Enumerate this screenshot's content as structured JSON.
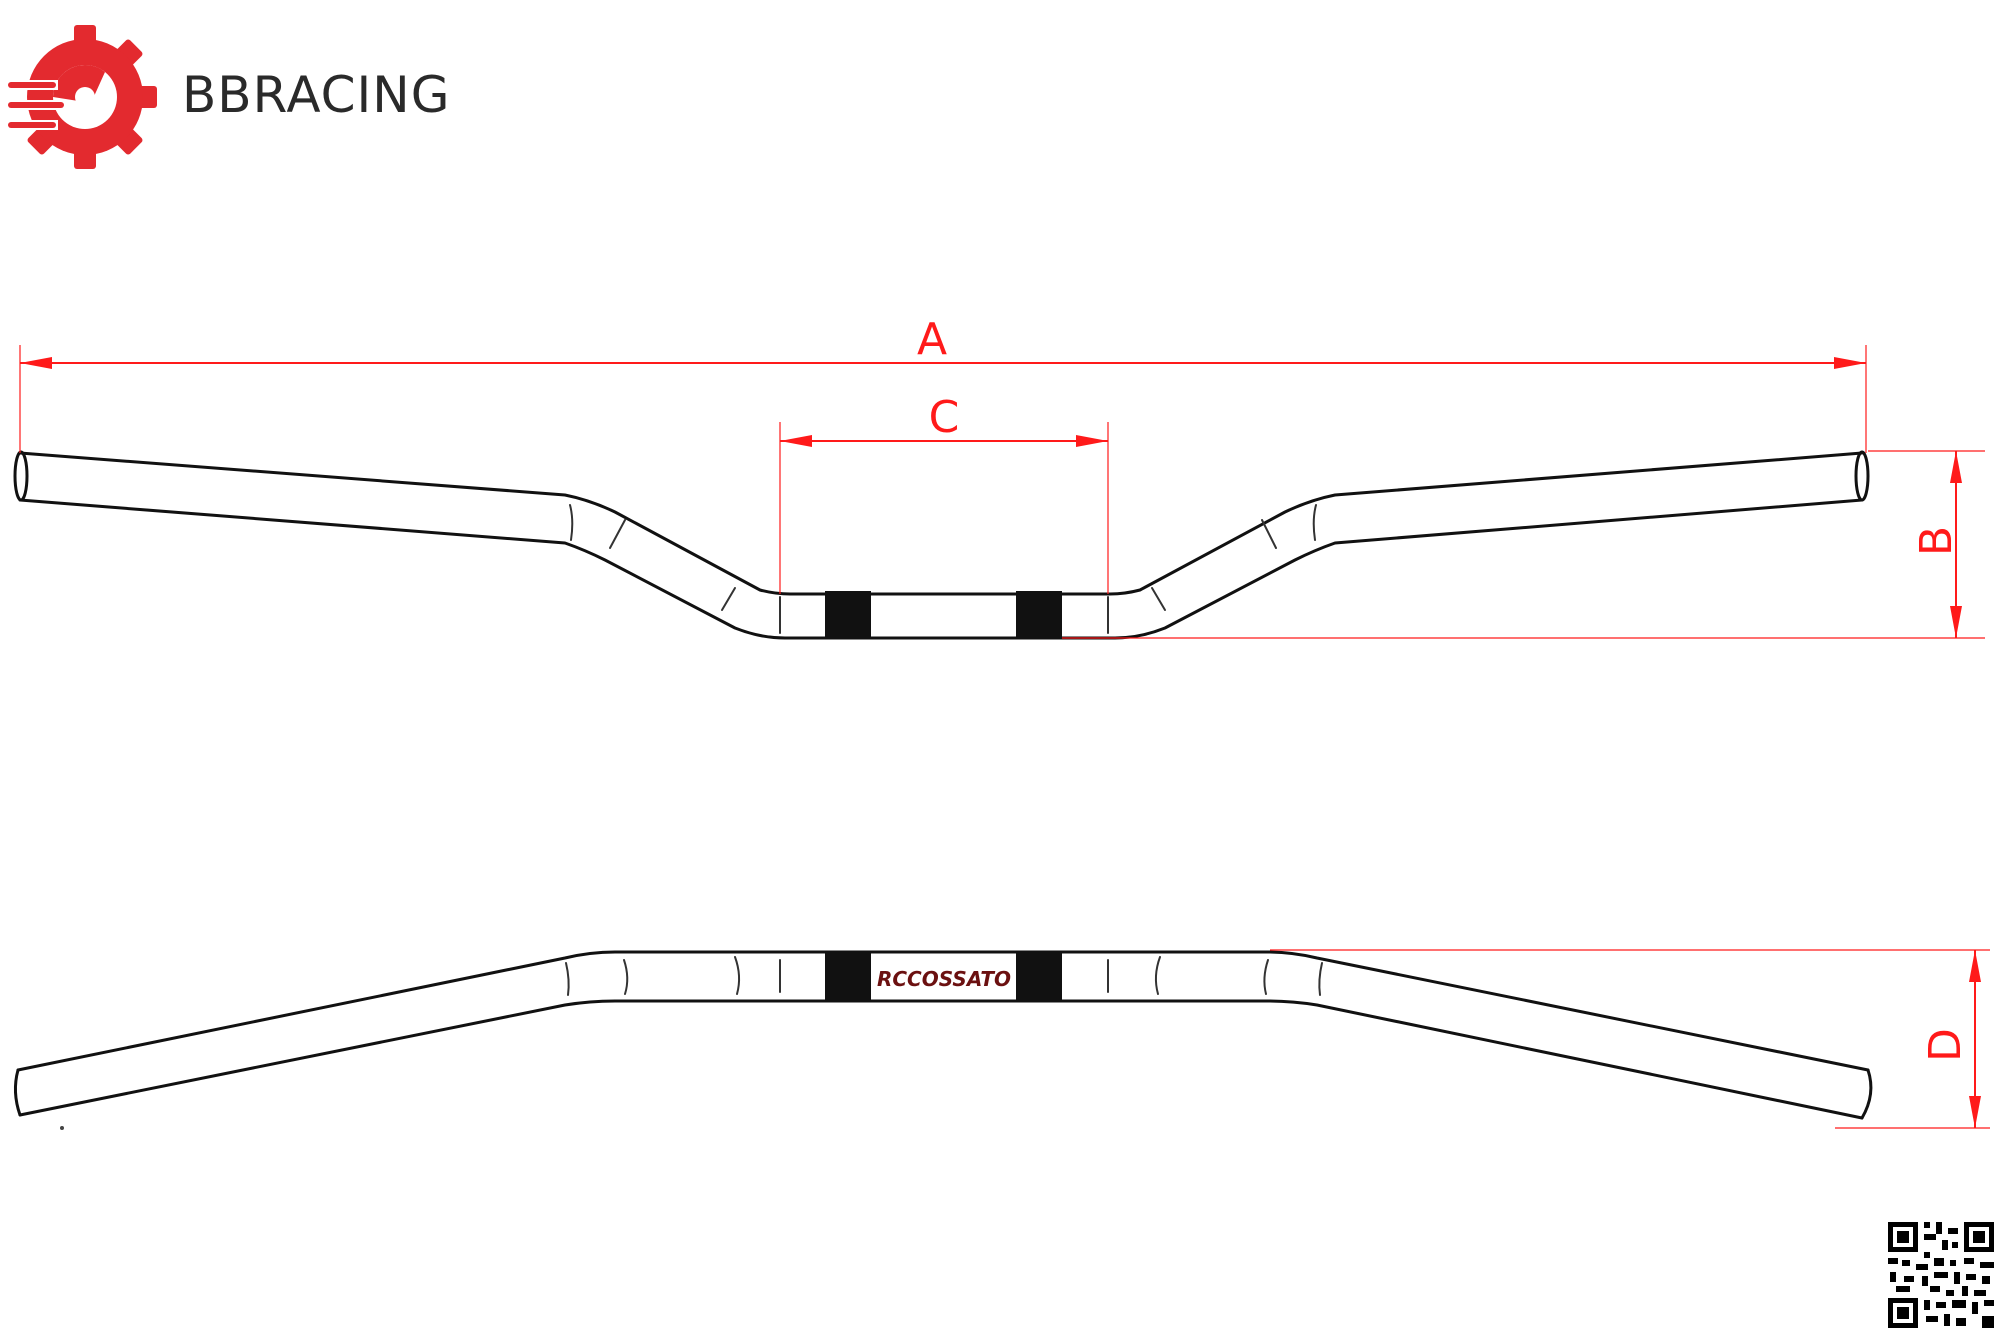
{
  "brand": {
    "name": "BBRACING",
    "logo_icon": "gear-speed-icon",
    "logo_color": "#e32a2f"
  },
  "dimensions": {
    "a": "A",
    "b": "B",
    "c": "C",
    "d": "D",
    "line_color": "#ff1a1a"
  },
  "product": {
    "stamp": "RCCOSSATO"
  },
  "qr": {
    "icon": "qr-code-icon"
  }
}
